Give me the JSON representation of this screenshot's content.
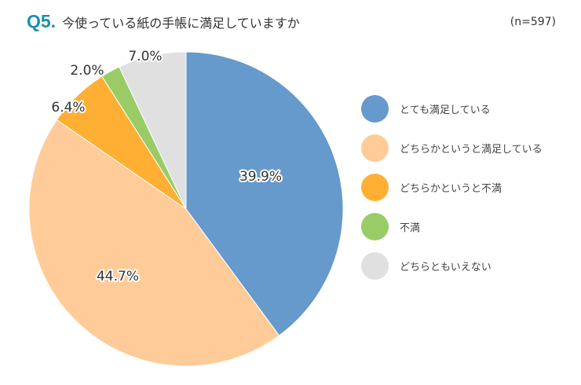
{
  "header": {
    "question_number": "Q5.",
    "question_text": "今使っている紙の手帳に満足していますか",
    "sample_size": "(n=597)"
  },
  "legend": {
    "items": [
      {
        "label": "とても満足している",
        "color": "#6699cc"
      },
      {
        "label": "どちらかというと満足している",
        "color": "#ffcc99"
      },
      {
        "label": "どちらかというと不満",
        "color": "#ffaf33"
      },
      {
        "label": "不満",
        "color": "#99cc66"
      },
      {
        "label": "どちらともいえない",
        "color": "#e0e0e0"
      }
    ]
  },
  "slice_labels": [
    "39.9%",
    "44.7%",
    "6.4%",
    "2.0%",
    "7.0%"
  ],
  "chart_data": {
    "type": "pie",
    "title": "Q5. 今使っている紙の手帳に満足していますか",
    "subtitle": "(n=597)",
    "categories": [
      "とても満足している",
      "どちらかというと満足している",
      "どちらかというと不満",
      "不満",
      "どちらともいえない"
    ],
    "values": [
      39.9,
      44.7,
      6.4,
      2.0,
      7.0
    ],
    "unit": "%",
    "colors": [
      "#6699cc",
      "#ffcc99",
      "#ffaf33",
      "#99cc66",
      "#e0e0e0"
    ],
    "start_angle": "12 o'clock",
    "direction": "clockwise",
    "legend_position": "right"
  }
}
